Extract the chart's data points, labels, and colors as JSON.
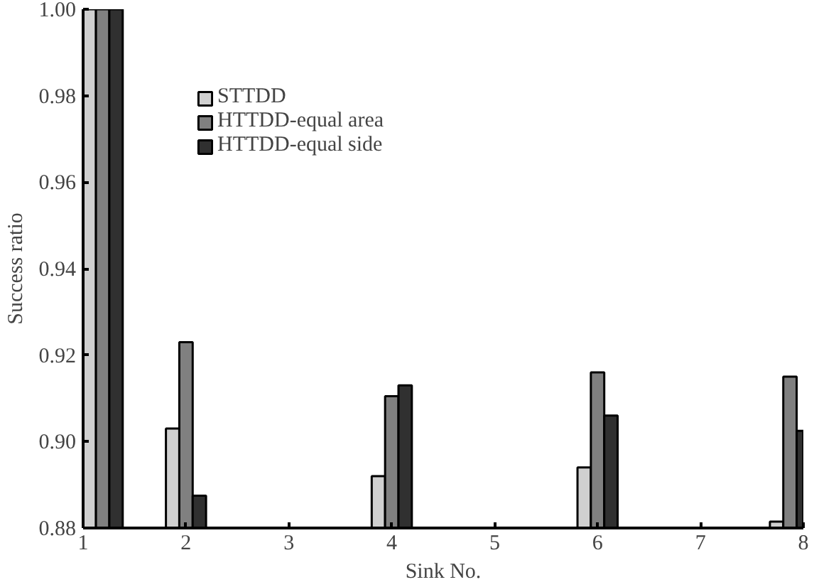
{
  "chart_data": {
    "type": "bar",
    "xlabel": "Sink No.",
    "ylabel": "Success ratio",
    "x": [
      1.19,
      2,
      4,
      6,
      7.87
    ],
    "series": [
      {
        "name": "STTDD",
        "color": "#d0d0d0",
        "values": [
          1.0,
          0.903,
          0.892,
          0.894,
          0.8815
        ]
      },
      {
        "name": "HTTDD-equal area",
        "color": "#808080",
        "values": [
          1.0,
          0.923,
          0.9105,
          0.916,
          0.915
        ]
      },
      {
        "name": "HTTDD-equal side",
        "color": "#303030",
        "values": [
          1.0,
          0.8875,
          0.913,
          0.906,
          0.9025
        ]
      }
    ],
    "xlim": [
      1,
      8
    ],
    "xticks": [
      1,
      2,
      3,
      4,
      5,
      6,
      7,
      8
    ],
    "ylim": [
      0.88,
      1.0
    ],
    "yticks": [
      {
        "value": 0.88,
        "label": "0.88"
      },
      {
        "value": 0.9,
        "label": "0.90"
      },
      {
        "value": 0.92,
        "label": "0.92"
      },
      {
        "value": 0.94,
        "label": "0.94"
      },
      {
        "value": 0.96,
        "label": "0.96"
      },
      {
        "value": 0.98,
        "label": "0.98"
      },
      {
        "value": 1.0,
        "label": "1.00"
      }
    ],
    "legend": "top left",
    "grid": false
  }
}
